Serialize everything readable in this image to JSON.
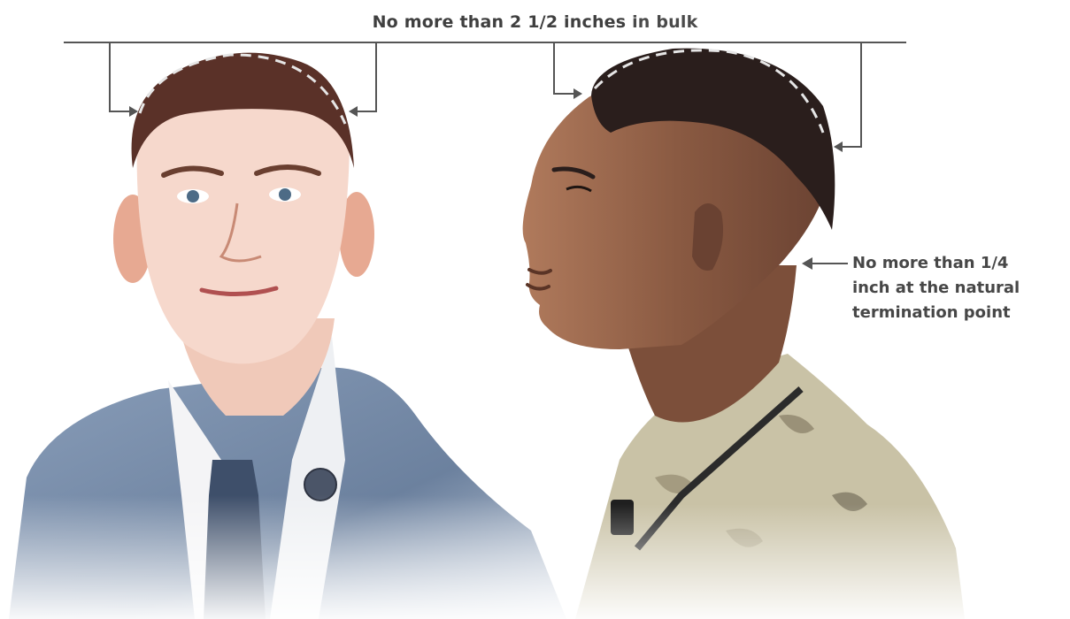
{
  "annotations": {
    "bulk": {
      "main": "No more than 2 1/2 inches",
      "tail": " in bulk"
    },
    "nape": {
      "text": "No more than 1/4\ninch at the natural\ntermination point"
    }
  },
  "colors": {
    "annotation_text": "#3f3f3f",
    "bracket_line": "#555555",
    "dashed_guide": "#e6e6e6",
    "jacket": "#6a82a3",
    "tie": "#3e4f6a",
    "camouflage_base": "#c9c2a6",
    "skin_left": "#f1cdbf",
    "skin_right": "#8a5a42",
    "hair_left": "#5a3128",
    "hair_right": "#2a1e1c"
  },
  "figures": [
    {
      "subject": "portrait-front-uniform-jacket",
      "icon": "person-front-illustration"
    },
    {
      "subject": "portrait-profile-camouflage",
      "icon": "person-profile-illustration"
    }
  ]
}
